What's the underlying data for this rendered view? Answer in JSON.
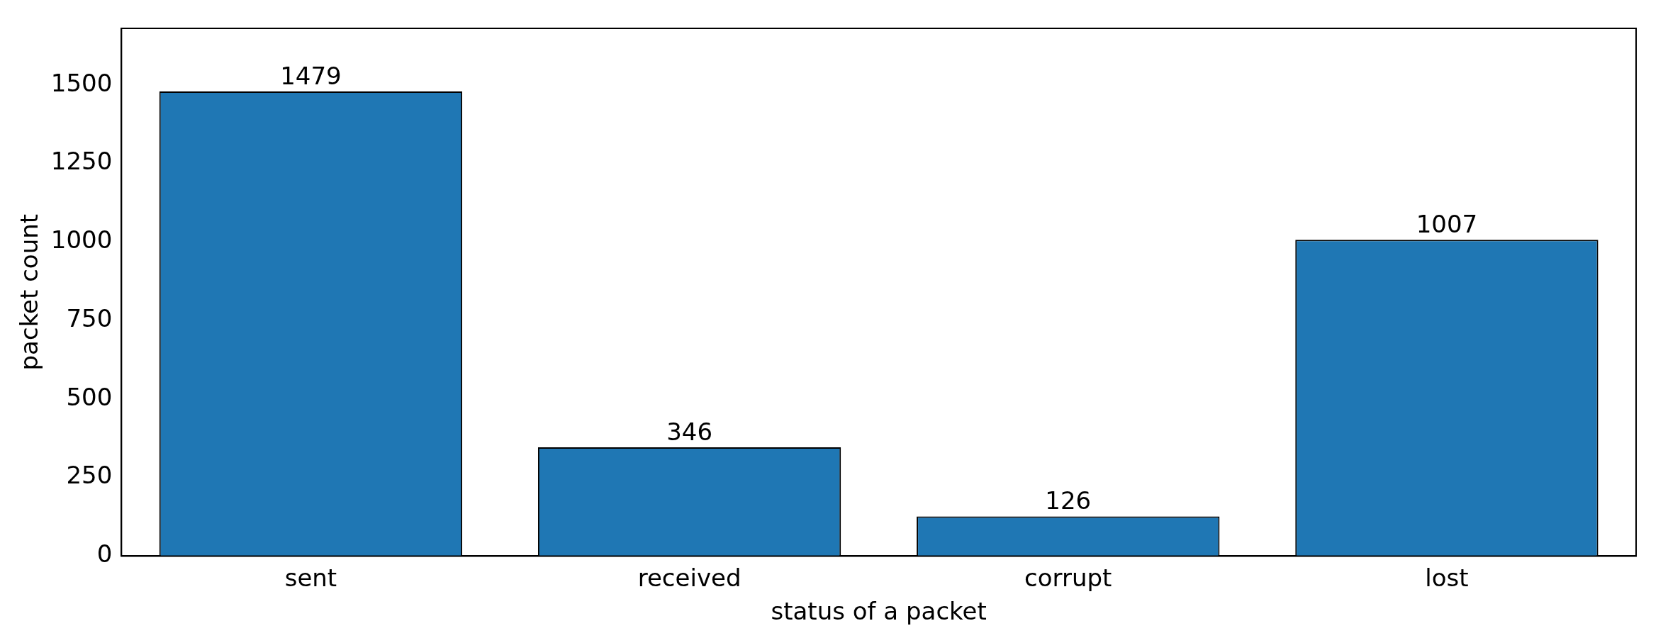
{
  "chart_data": {
    "type": "bar",
    "xlabel": "status of a packet",
    "ylabel": "packet count",
    "categories": [
      "sent",
      "received",
      "corrupt",
      "lost"
    ],
    "values": [
      1479,
      346,
      126,
      1007
    ],
    "color": "#1f77b4",
    "ylim": [
      0,
      1680
    ],
    "yticks": [
      0,
      250,
      500,
      750,
      1000,
      1250,
      1500
    ],
    "grid": false,
    "data_labels": true
  }
}
